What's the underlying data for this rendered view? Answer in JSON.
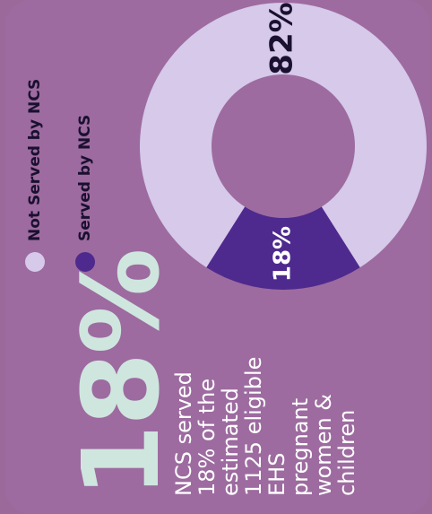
{
  "headline": {
    "stat": "18%",
    "description_lines": [
      "NCS served",
      "18% of the",
      "estimated",
      "1125 eligible",
      "EHS",
      "pregnant",
      "women &",
      "children"
    ]
  },
  "legend": [
    {
      "label": "Not Served by NCS",
      "color": "#d6c9ea"
    },
    {
      "label": "Served by NCS",
      "color": "#4e2a8e"
    }
  ],
  "colors": {
    "background": "#9d6ba0",
    "stat_color": "#cfe6de"
  },
  "chart_data": {
    "type": "pie",
    "style": "donut",
    "categories": [
      "Served by NCS",
      "Not Served by NCS"
    ],
    "values": [
      18,
      82
    ],
    "labels": [
      "18%",
      "82%"
    ],
    "colors": [
      "#4e2a8e",
      "#d6c9ea"
    ]
  }
}
